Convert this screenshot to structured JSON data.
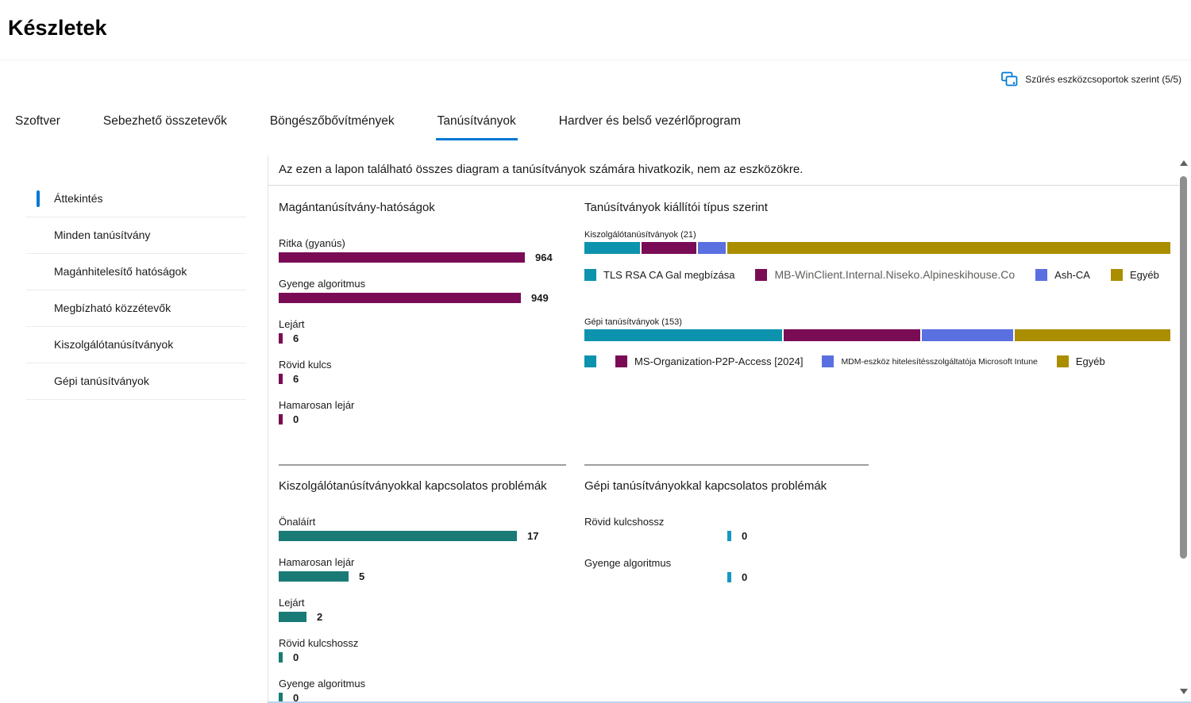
{
  "page": {
    "title": "Készletek"
  },
  "filter": {
    "label": "Szűrés eszközcsoportok szerint (5/5)"
  },
  "tabs": [
    {
      "label": "Szoftver",
      "active": false
    },
    {
      "label": "Sebezhető összetevők",
      "active": false
    },
    {
      "label": "Böngészőbővítmények",
      "active": false
    },
    {
      "label": "Tanúsítványok",
      "active": true
    },
    {
      "label": "Hardver és belső vezérlőprogram",
      "active": false
    }
  ],
  "sidebar": {
    "items": [
      {
        "label": "Áttekintés",
        "selected": true
      },
      {
        "label": "Minden tanúsítvány",
        "selected": false
      },
      {
        "label": "Magánhitelesítő hatóságok",
        "selected": false
      },
      {
        "label": "Megbízható közzétevők",
        "selected": false
      },
      {
        "label": "Kiszolgálótanúsítványok",
        "selected": false
      },
      {
        "label": "Gépi tanúsítványok",
        "selected": false
      }
    ]
  },
  "note": "Az ezen a lapon található összes diagram a tanúsítványok számára hivatkozik, nem az eszközökre.",
  "colors": {
    "accent": "#0078D4",
    "magenta": "#7A0C55",
    "teal": "#1A7A76",
    "stack_cyan": "#0D93AE",
    "stack_blue": "#5A6FE0",
    "stack_gold": "#AA8E00",
    "small_cyan": "#1598C6"
  },
  "chart_data": [
    {
      "id": "private-cert-authorities",
      "type": "bar",
      "title": "Magántanúsítvány-hatóságok",
      "bar_color": "#7A0C55",
      "categories": [
        "Ritka (gyanús)",
        "Gyenge algoritmus",
        "Lejárt",
        "Rövid kulcs",
        "Hamarosan lejár"
      ],
      "values": [
        964,
        949,
        6,
        6,
        0
      ],
      "max": 964,
      "grid": false,
      "legend_position": "none"
    },
    {
      "id": "certificates-by-issuer-type",
      "type": "stacked-bar",
      "title": "Tanúsítványok kiállítói típus szerint",
      "groups": [
        {
          "label": "Kiszolgálótanúsítványok (21)",
          "total": 21,
          "segments": [
            {
              "name": "TLS RSA CA Gal megbízása",
              "value": 2,
              "color": "#0D93AE"
            },
            {
              "name": "MB-WinClient.Internal.Niseko.Alpineskihouse.Co",
              "value": 2,
              "color": "#7A0C55"
            },
            {
              "name": "Ash-CA",
              "value": 1,
              "color": "#5A6FE0"
            },
            {
              "name": "Egyéb",
              "value": 16,
              "color": "#AA8E00"
            }
          ]
        },
        {
          "label": "Gépi tanúsítványok (153)",
          "total": 153,
          "segments": [
            {
              "name": "",
              "value": 52,
              "color": "#0D93AE"
            },
            {
              "name": "MS-Organization-P2P-Access [2024]",
              "value": 36,
              "color": "#7A0C55"
            },
            {
              "name": "MDM-eszköz hitelesítésszolgáltatója Microsoft Intune",
              "value": 24,
              "color": "#5A6FE0"
            },
            {
              "name": "Egyéb",
              "value": 41,
              "color": "#AA8E00"
            }
          ]
        }
      ],
      "legend_position": "below-each-bar"
    },
    {
      "id": "server-certificate-issues",
      "type": "bar",
      "title": "Kiszolgálótanúsítványokkal kapcsolatos problémák",
      "bar_color": "#1A7A76",
      "categories": [
        "Önaláírt",
        "Hamarosan lejár",
        "Lejárt",
        "Rövid kulcshossz",
        "Gyenge algoritmus"
      ],
      "values": [
        17,
        5,
        2,
        0,
        0
      ],
      "max": 17,
      "grid": false,
      "legend_position": "none"
    },
    {
      "id": "device-certificate-issues",
      "type": "bar",
      "title": "Gépi tanúsítványokkal kapcsolatos problémák",
      "bar_color": "#1598C6",
      "categories": [
        "Rövid kulcshossz",
        "Gyenge algoritmus"
      ],
      "values": [
        0,
        0
      ],
      "max": 1,
      "grid": false,
      "legend_position": "none"
    }
  ]
}
